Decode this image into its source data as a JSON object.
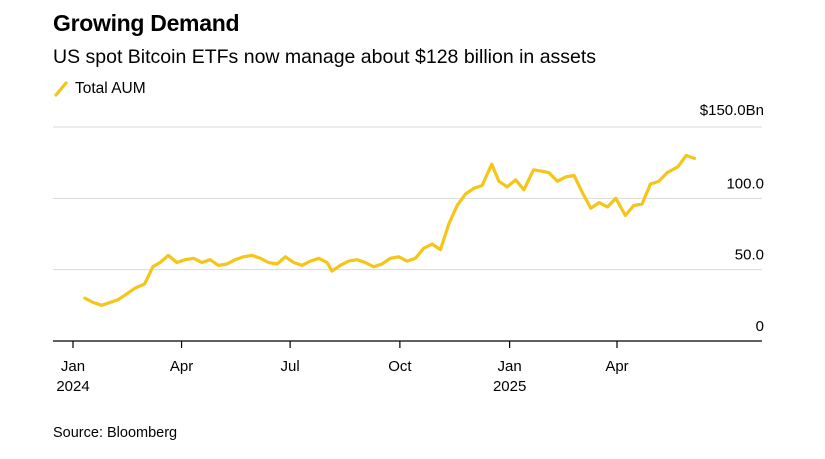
{
  "title": "Growing Demand",
  "subtitle": "US spot Bitcoin ETFs now manage about $128 billion in assets",
  "source": "Source: Bloomberg",
  "colors": {
    "line": "#F5C518",
    "grid": "#D9D9D9",
    "axis": "#000000"
  },
  "chart_data": {
    "type": "line",
    "title": "Growing Demand",
    "subtitle": "US spot Bitcoin ETFs now manage about $128 billion in assets",
    "y_unit": "Bn",
    "ylim": [
      0,
      150
    ],
    "y_ticks": [
      {
        "value": 150,
        "label": "$150.0Bn"
      },
      {
        "value": 100,
        "label": "100.0"
      },
      {
        "value": 50,
        "label": "50.0"
      },
      {
        "value": 0,
        "label": "0"
      }
    ],
    "x_ticks": [
      {
        "date": "2024-01",
        "label": "Jan",
        "sublabel": "2024"
      },
      {
        "date": "2024-04",
        "label": "Apr",
        "sublabel": ""
      },
      {
        "date": "2024-07",
        "label": "Jul",
        "sublabel": ""
      },
      {
        "date": "2024-10",
        "label": "Oct",
        "sublabel": ""
      },
      {
        "date": "2025-01",
        "label": "Jan",
        "sublabel": "2025"
      },
      {
        "date": "2025-04",
        "label": "Apr",
        "sublabel": ""
      }
    ],
    "xlim": [
      "2024-01",
      "2025-07"
    ],
    "grid": true,
    "legend": "top-left",
    "series": [
      {
        "name": "Total AUM",
        "x": [
          "2024-01-11",
          "2024-01-18",
          "2024-01-25",
          "2024-02-01",
          "2024-02-08",
          "2024-02-15",
          "2024-02-22",
          "2024-03-01",
          "2024-03-08",
          "2024-03-14",
          "2024-03-21",
          "2024-03-28",
          "2024-04-04",
          "2024-04-11",
          "2024-04-18",
          "2024-04-25",
          "2024-05-02",
          "2024-05-09",
          "2024-05-16",
          "2024-05-23",
          "2024-05-30",
          "2024-06-06",
          "2024-06-13",
          "2024-06-20",
          "2024-06-27",
          "2024-07-04",
          "2024-07-11",
          "2024-07-18",
          "2024-07-25",
          "2024-08-01",
          "2024-08-05",
          "2024-08-12",
          "2024-08-19",
          "2024-08-26",
          "2024-09-02",
          "2024-09-09",
          "2024-09-16",
          "2024-09-23",
          "2024-09-30",
          "2024-10-07",
          "2024-10-14",
          "2024-10-21",
          "2024-10-28",
          "2024-11-04",
          "2024-11-11",
          "2024-11-18",
          "2024-11-25",
          "2024-12-02",
          "2024-12-09",
          "2024-12-17",
          "2024-12-23",
          "2024-12-30",
          "2025-01-06",
          "2025-01-13",
          "2025-01-21",
          "2025-01-28",
          "2025-02-03",
          "2025-02-10",
          "2025-02-17",
          "2025-02-24",
          "2025-03-03",
          "2025-03-10",
          "2025-03-17",
          "2025-03-24",
          "2025-03-31",
          "2025-04-08",
          "2025-04-15",
          "2025-04-22",
          "2025-04-29",
          "2025-05-06",
          "2025-05-13",
          "2025-05-22",
          "2025-05-29",
          "2025-06-05"
        ],
        "values": [
          30,
          27,
          25,
          27,
          29,
          33,
          37,
          40,
          52,
          55,
          60,
          55,
          57,
          58,
          55,
          57,
          53,
          54,
          57,
          59,
          60,
          58,
          55,
          54,
          59,
          55,
          53,
          56,
          58,
          55,
          49,
          53,
          56,
          57,
          55,
          52,
          54,
          58,
          59,
          56,
          58,
          65,
          68,
          64,
          82,
          95,
          103,
          107,
          109,
          124,
          112,
          108,
          113,
          106,
          120,
          119,
          118,
          112,
          115,
          116,
          104,
          93,
          97,
          94,
          100,
          88,
          95,
          96,
          110,
          112,
          118,
          122,
          130,
          128
        ]
      }
    ],
    "xlabel": "",
    "ylabel": ""
  }
}
